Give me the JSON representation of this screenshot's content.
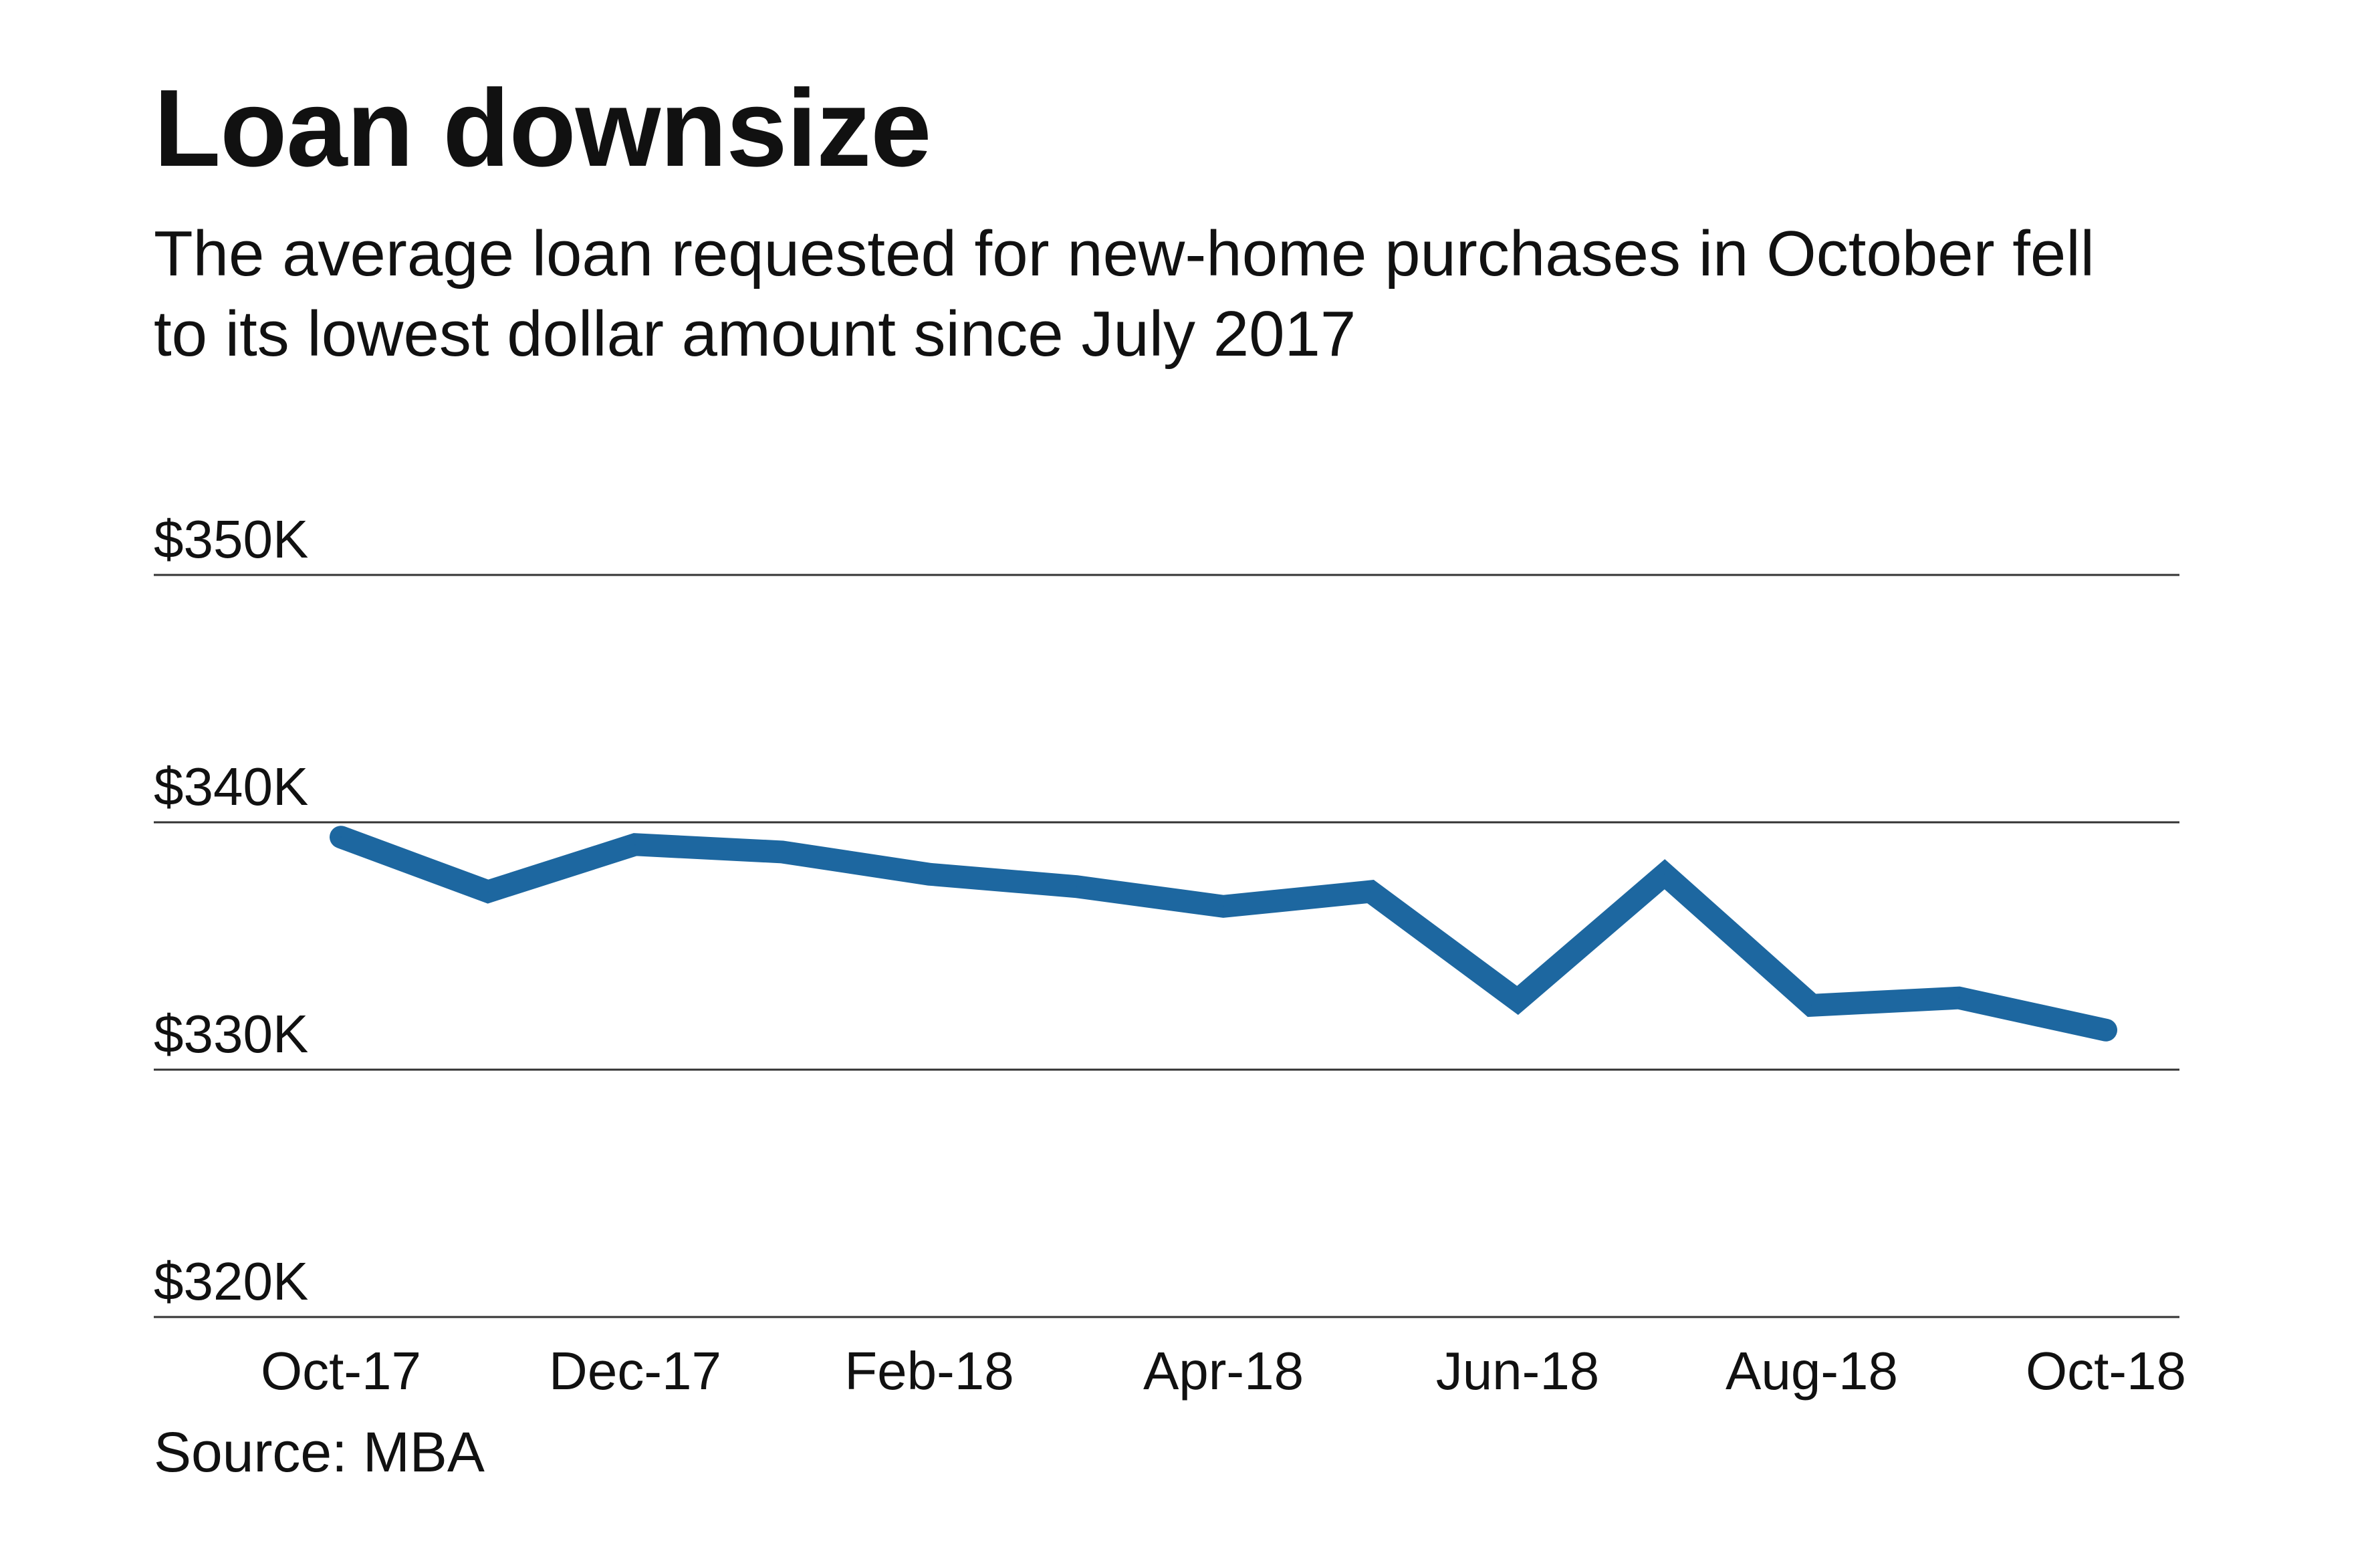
{
  "chart_data": {
    "type": "line",
    "title": "Loan downsize",
    "subtitle": "The average loan requested for new-home purchases in October fell to its lowest dollar amount since July 2017",
    "source": "Source: MBA",
    "xlabel": "",
    "ylabel": "",
    "ylim": [
      320,
      350
    ],
    "y_ticks": [
      {
        "value": 350,
        "label": "$350K"
      },
      {
        "value": 340,
        "label": "$340K"
      },
      {
        "value": 330,
        "label": "$330K"
      },
      {
        "value": 320,
        "label": "$320K"
      }
    ],
    "x": [
      "Oct-17",
      "Nov-17",
      "Dec-17",
      "Jan-18",
      "Feb-18",
      "Mar-18",
      "Apr-18",
      "May-18",
      "Jun-18",
      "Jul-18",
      "Aug-18",
      "Sep-18",
      "Oct-18"
    ],
    "x_tick_labels": [
      "Oct-17",
      "Dec-17",
      "Feb-18",
      "Apr-18",
      "Jun-18",
      "Aug-18",
      "Oct-18"
    ],
    "series": [
      {
        "values": [
          339.4,
          337.2,
          339.1,
          338.8,
          337.9,
          337.4,
          336.6,
          337.2,
          332.8,
          337.9,
          332.6,
          332.9,
          331.6
        ]
      }
    ],
    "grid": true,
    "legend": "none",
    "colors": {
      "line": "#1d67a0",
      "grid": "#333333",
      "text": "#111111"
    }
  }
}
